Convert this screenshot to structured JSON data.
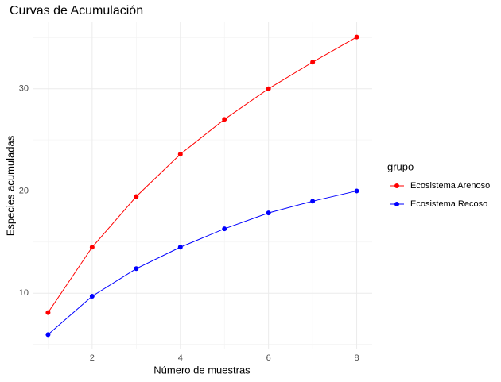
{
  "chart_data": {
    "type": "line",
    "title": "Curvas de Acumulación",
    "x_label": "Número de muestras",
    "y_label": "Especies acumuladas",
    "legend_title": "grupo",
    "legend_position": "right",
    "x": [
      1,
      2,
      3,
      4,
      5,
      6,
      7,
      8
    ],
    "series": [
      {
        "name": "Ecosistema Arenoso",
        "color": "#ff0000",
        "values": [
          8.1,
          14.5,
          19.45,
          23.6,
          27.0,
          30.0,
          32.6,
          35.05
        ]
      },
      {
        "name": "Ecosistema Recoso",
        "color": "#0000ff",
        "values": [
          5.95,
          9.7,
          12.4,
          14.5,
          16.3,
          17.85,
          19.0,
          20.0
        ]
      }
    ],
    "xlim": [
      0.65,
      8.35
    ],
    "xticks": [
      2,
      4,
      6,
      8
    ],
    "ylim": [
      4.5,
      36.5
    ],
    "yticks": [
      10,
      20,
      30
    ],
    "grid": true,
    "markers": true
  }
}
